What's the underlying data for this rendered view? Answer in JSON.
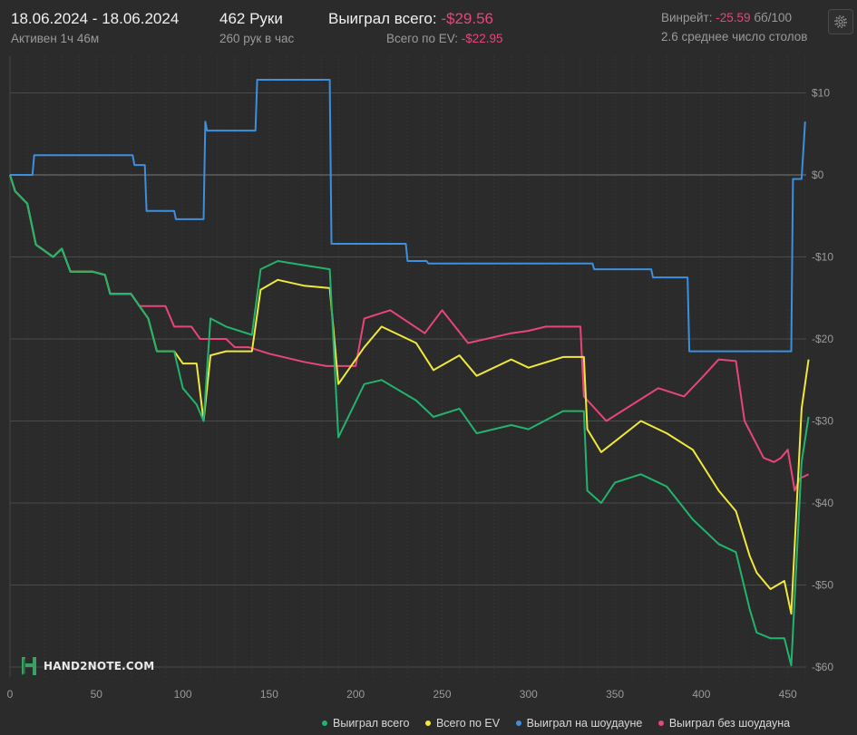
{
  "header": {
    "date_range": "18.06.2024 - 18.06.2024",
    "active_label": "Активен 1ч 46м",
    "hands_label": "462 Руки",
    "hands_per_hour": "260 рук в час",
    "won_total_label": "Выиграл всего:",
    "won_total_value": "-$29.56",
    "ev_total_label": "Всего по EV:",
    "ev_total_value": "-$22.95",
    "winrate_label": "Винрейт:",
    "winrate_value": "-25.59",
    "winrate_unit": "бб/100",
    "tables_label": "2.6 среднее число столов"
  },
  "logo": {
    "text": "HAND2NOTE.COM"
  },
  "colors": {
    "background": "#2b2b2b",
    "won_total": "#22b46e",
    "ev": "#f0e83a",
    "showdown": "#3d8fe0",
    "non_showdown": "#e8457a",
    "negative": "#e8457a",
    "grid": "#4a4a4a"
  },
  "legend": [
    {
      "label": "Выиграл всего",
      "color": "#22b46e"
    },
    {
      "label": "Всего по EV",
      "color": "#f0e83a"
    },
    {
      "label": "Выиграл на шоудауне",
      "color": "#3d8fe0"
    },
    {
      "label": "Выиграл без шоудауна",
      "color": "#e8457a"
    }
  ],
  "chart_data": {
    "type": "line",
    "xlabel": "",
    "ylabel": "",
    "xlim": [
      0,
      462
    ],
    "ylim": [
      -61,
      13
    ],
    "x_ticks": [
      0,
      50,
      100,
      150,
      200,
      250,
      300,
      350,
      400,
      450
    ],
    "x_tick_labels": [
      "0",
      "50",
      "100",
      "150",
      "200",
      "250",
      "300",
      "350",
      "400",
      "450"
    ],
    "y_ticks": [
      10,
      0,
      -10,
      -20,
      -30,
      -40,
      -50,
      -60
    ],
    "y_tick_labels": [
      "$10",
      "$0",
      "-$10",
      "-$20",
      "-$30",
      "-$40",
      "-$50",
      "-$60"
    ],
    "grid": true,
    "legend_position": "bottom-right",
    "series": [
      {
        "name": "Выиграл на шоудауне",
        "color": "#3d8fe0",
        "points": [
          [
            0,
            0
          ],
          [
            13,
            0
          ],
          [
            14,
            2.4
          ],
          [
            71,
            2.4
          ],
          [
            72,
            1.2
          ],
          [
            78,
            1.2
          ],
          [
            79,
            -4.4
          ],
          [
            95,
            -4.4
          ],
          [
            96,
            -5.4
          ],
          [
            112,
            -5.4
          ],
          [
            113,
            6.5
          ],
          [
            114,
            5.4
          ],
          [
            142,
            5.4
          ],
          [
            143,
            11.6
          ],
          [
            185,
            11.6
          ],
          [
            186,
            -8.4
          ],
          [
            229,
            -8.4
          ],
          [
            230,
            -10.5
          ],
          [
            241,
            -10.5
          ],
          [
            242,
            -10.8
          ],
          [
            337,
            -10.8
          ],
          [
            338,
            -11.5
          ],
          [
            371,
            -11.5
          ],
          [
            372,
            -12.5
          ],
          [
            392,
            -12.5
          ],
          [
            393,
            -21.5
          ],
          [
            452,
            -21.5
          ],
          [
            453,
            -0.5
          ],
          [
            458,
            -0.5
          ],
          [
            460,
            6.5
          ]
        ]
      },
      {
        "name": "Выиграл без шоудауна",
        "color": "#e8457a",
        "points": [
          [
            0,
            0
          ],
          [
            3,
            -2
          ],
          [
            10,
            -3.5
          ],
          [
            15,
            -8.5
          ],
          [
            25,
            -10
          ],
          [
            30,
            -9
          ],
          [
            35,
            -11.8
          ],
          [
            48,
            -11.8
          ],
          [
            55,
            -12.2
          ],
          [
            58,
            -14.5
          ],
          [
            70,
            -14.5
          ],
          [
            75,
            -16
          ],
          [
            90,
            -16
          ],
          [
            95,
            -18.5
          ],
          [
            105,
            -18.5
          ],
          [
            110,
            -20
          ],
          [
            125,
            -20
          ],
          [
            130,
            -21
          ],
          [
            138,
            -21
          ],
          [
            150,
            -21.8
          ],
          [
            170,
            -22.8
          ],
          [
            183,
            -23.3
          ],
          [
            200,
            -23.3
          ],
          [
            205,
            -17.5
          ],
          [
            220,
            -16.5
          ],
          [
            240,
            -19.3
          ],
          [
            250,
            -16.5
          ],
          [
            265,
            -20.5
          ],
          [
            290,
            -19.3
          ],
          [
            300,
            -19
          ],
          [
            310,
            -18.5
          ],
          [
            330,
            -18.5
          ],
          [
            332,
            -27
          ],
          [
            345,
            -30
          ],
          [
            360,
            -28
          ],
          [
            375,
            -26
          ],
          [
            390,
            -27
          ],
          [
            400,
            -24.8
          ],
          [
            410,
            -22.5
          ],
          [
            420,
            -22.7
          ],
          [
            425,
            -30
          ],
          [
            436,
            -34.5
          ],
          [
            442,
            -35
          ],
          [
            446,
            -34.5
          ],
          [
            450,
            -33.5
          ],
          [
            454,
            -38.5
          ],
          [
            457,
            -37
          ],
          [
            462,
            -36.5
          ]
        ]
      },
      {
        "name": "Всего по EV",
        "color": "#f0e83a",
        "points": [
          [
            0,
            0
          ],
          [
            3,
            -2
          ],
          [
            10,
            -3.5
          ],
          [
            15,
            -8.5
          ],
          [
            25,
            -10
          ],
          [
            30,
            -9
          ],
          [
            35,
            -11.8
          ],
          [
            48,
            -11.8
          ],
          [
            55,
            -12.2
          ],
          [
            58,
            -14.5
          ],
          [
            70,
            -14.5
          ],
          [
            75,
            -16
          ],
          [
            80,
            -17.5
          ],
          [
            85,
            -21.5
          ],
          [
            95,
            -21.5
          ],
          [
            100,
            -23
          ],
          [
            108,
            -23
          ],
          [
            112,
            -30
          ],
          [
            116,
            -22
          ],
          [
            125,
            -21.5
          ],
          [
            140,
            -21.5
          ],
          [
            145,
            -14
          ],
          [
            155,
            -12.8
          ],
          [
            170,
            -13.5
          ],
          [
            185,
            -13.8
          ],
          [
            190,
            -25.5
          ],
          [
            205,
            -21
          ],
          [
            215,
            -18.5
          ],
          [
            235,
            -20.5
          ],
          [
            245,
            -23.8
          ],
          [
            260,
            -22
          ],
          [
            270,
            -24.5
          ],
          [
            290,
            -22.5
          ],
          [
            300,
            -23.5
          ],
          [
            320,
            -22.2
          ],
          [
            332,
            -22.2
          ],
          [
            334,
            -31
          ],
          [
            342,
            -33.8
          ],
          [
            350,
            -32.5
          ],
          [
            365,
            -30
          ],
          [
            380,
            -31.5
          ],
          [
            395,
            -33.5
          ],
          [
            410,
            -38.5
          ],
          [
            420,
            -41
          ],
          [
            428,
            -46.5
          ],
          [
            432,
            -48.5
          ],
          [
            440,
            -50.5
          ],
          [
            448,
            -49.5
          ],
          [
            452,
            -53.5
          ],
          [
            458,
            -28.5
          ],
          [
            462,
            -22.5
          ]
        ]
      },
      {
        "name": "Выиграл всего",
        "color": "#22b46e",
        "points": [
          [
            0,
            0
          ],
          [
            3,
            -2
          ],
          [
            10,
            -3.5
          ],
          [
            15,
            -8.5
          ],
          [
            25,
            -10
          ],
          [
            30,
            -9
          ],
          [
            35,
            -11.8
          ],
          [
            48,
            -11.8
          ],
          [
            55,
            -12.2
          ],
          [
            58,
            -14.5
          ],
          [
            70,
            -14.5
          ],
          [
            75,
            -16
          ],
          [
            80,
            -17.5
          ],
          [
            85,
            -21.5
          ],
          [
            95,
            -21.5
          ],
          [
            100,
            -26
          ],
          [
            108,
            -28
          ],
          [
            112,
            -30
          ],
          [
            116,
            -17.5
          ],
          [
            125,
            -18.5
          ],
          [
            140,
            -19.5
          ],
          [
            145,
            -11.5
          ],
          [
            155,
            -10.5
          ],
          [
            170,
            -11
          ],
          [
            185,
            -11.5
          ],
          [
            190,
            -32
          ],
          [
            205,
            -25.5
          ],
          [
            215,
            -25
          ],
          [
            235,
            -27.5
          ],
          [
            245,
            -29.5
          ],
          [
            260,
            -28.5
          ],
          [
            270,
            -31.5
          ],
          [
            290,
            -30.5
          ],
          [
            300,
            -31
          ],
          [
            320,
            -28.8
          ],
          [
            332,
            -28.8
          ],
          [
            334,
            -38.5
          ],
          [
            342,
            -40
          ],
          [
            350,
            -37.5
          ],
          [
            365,
            -36.5
          ],
          [
            380,
            -38
          ],
          [
            395,
            -42
          ],
          [
            410,
            -45
          ],
          [
            420,
            -46
          ],
          [
            428,
            -53
          ],
          [
            432,
            -55.8
          ],
          [
            440,
            -56.5
          ],
          [
            448,
            -56.5
          ],
          [
            452,
            -59.8
          ],
          [
            458,
            -35
          ],
          [
            462,
            -29.5
          ]
        ]
      }
    ]
  }
}
